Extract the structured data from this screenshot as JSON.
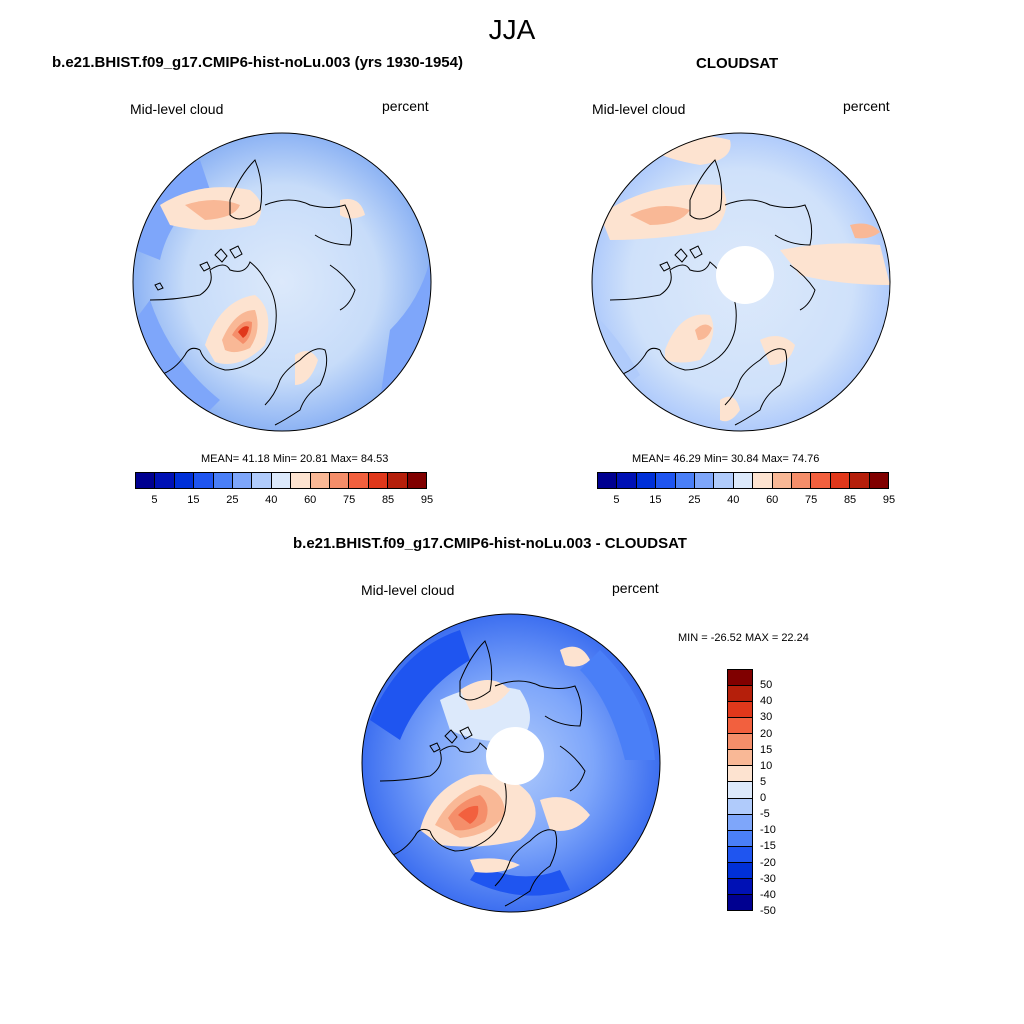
{
  "season": "JJA",
  "panels": [
    {
      "title": "b.e21.BHIST.f09_g17.CMIP6-hist-noLu.003 (yrs 1930-1954)",
      "left_label": "Mid-level cloud",
      "right_label": "percent",
      "stats": "MEAN=  41.18  Min=  20.81  Max=  84.53",
      "has_hole": false
    },
    {
      "title": "CLOUDSAT",
      "left_label": "Mid-level cloud",
      "right_label": "percent",
      "stats": "MEAN=  46.29  Min=  30.84  Max=  74.76",
      "has_hole": true
    },
    {
      "title": "b.e21.BHIST.f09_g17.CMIP6-hist-noLu.003 - CLOUDSAT",
      "left_label": "Mid-level cloud",
      "right_label": "percent",
      "stats": "MIN = -26.52 MAX =  22.24",
      "has_hole": true
    }
  ],
  "colorbar_abs": {
    "colors": [
      "#000090",
      "#0011b5",
      "#0030d8",
      "#1f55f0",
      "#4a7ff7",
      "#7ea6fa",
      "#b0cbfb",
      "#dce9fb",
      "#fde3d0",
      "#f9b896",
      "#f58e6a",
      "#f2603e",
      "#e0381b",
      "#b51f0b",
      "#800000"
    ],
    "tick_labels": [
      "5",
      "15",
      "25",
      "40",
      "60",
      "75",
      "85",
      "95"
    ]
  },
  "colorbar_diff": {
    "colors_top_to_bottom": [
      "#800000",
      "#b51f0b",
      "#e0381b",
      "#f2603e",
      "#f58e6a",
      "#f9b896",
      "#fde3d0",
      "#dce9fb",
      "#b0cbfb",
      "#7ea6fa",
      "#4a7ff7",
      "#1f55f0",
      "#0030d8",
      "#0011b5",
      "#000090"
    ],
    "tick_labels": [
      "50",
      "40",
      "30",
      "20",
      "15",
      "10",
      "5",
      "0",
      "-5",
      "-10",
      "-15",
      "-20",
      "-30",
      "-40",
      "-50"
    ]
  },
  "colors": {
    "ocean_base": "#c7dcf9",
    "outer_ring": "#8db3f4",
    "positive": "#f7b898",
    "strong_positive": "#e5583a",
    "negative": "#3d6ff0",
    "map_outline": "#000000"
  }
}
